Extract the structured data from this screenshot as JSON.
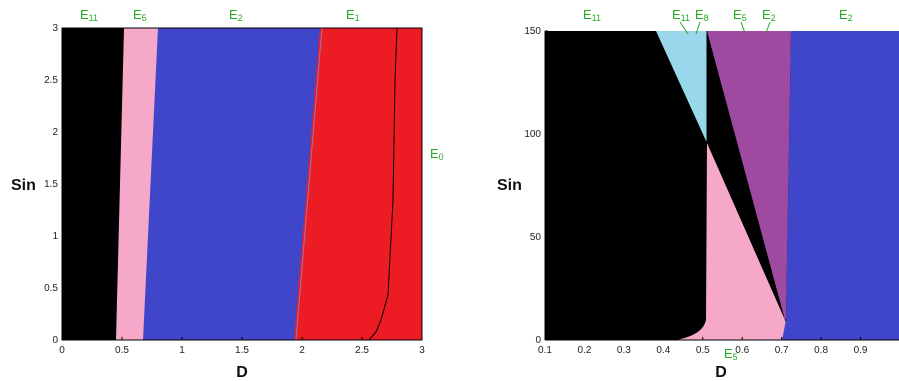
{
  "colors": {
    "black_region": "#000000",
    "pink_region": "#f6a8c8",
    "blue_region": "#3f46c9",
    "red_region": "#ed1c24",
    "cyan_region": "#98d8ea",
    "purple_region": "#9e4aa0",
    "label_green": "#22aa22"
  },
  "chart_data": [
    {
      "type": "area",
      "xlabel": "D",
      "ylabel": "Sin",
      "xlim": [
        0,
        3
      ],
      "ylim": [
        0,
        3
      ],
      "xticks": [
        "0",
        "0.5",
        "1",
        "1.5",
        "2",
        "2.5",
        "3"
      ],
      "yticks": [
        "0",
        "0.5",
        "1",
        "1.5",
        "2",
        "2.5",
        "3"
      ],
      "grid": false,
      "boundaries": [
        {
          "between": [
            "E11",
            "E5"
          ],
          "points": [
            [
              0.45,
              0
            ],
            [
              0.52,
              3
            ]
          ]
        },
        {
          "between": [
            "E5",
            "E2"
          ],
          "points": [
            [
              0.68,
              0
            ],
            [
              0.82,
              3
            ]
          ]
        },
        {
          "between": [
            "E2",
            "E1"
          ],
          "points": [
            [
              1.95,
              0
            ],
            [
              2.17,
              3
            ]
          ]
        },
        {
          "between": [
            "E1",
            "E0"
          ],
          "points": [
            [
              2.57,
              0
            ],
            [
              2.72,
              0.3
            ],
            [
              2.76,
              0.7
            ],
            [
              2.8,
              3
            ]
          ]
        }
      ],
      "regions": [
        {
          "name": "E11",
          "color": "black"
        },
        {
          "name": "E5",
          "color": "pink"
        },
        {
          "name": "E2",
          "color": "blue"
        },
        {
          "name": "E1",
          "color": "red"
        },
        {
          "name": "E0",
          "color": "red"
        }
      ],
      "region_labels": [
        {
          "name": "E11",
          "text": "E",
          "sub": "11"
        },
        {
          "name": "E5",
          "text": "E",
          "sub": "5"
        },
        {
          "name": "E2",
          "text": "E",
          "sub": "2"
        },
        {
          "name": "E1",
          "text": "E",
          "sub": "1"
        },
        {
          "name": "E0",
          "text": "E",
          "sub": "0"
        }
      ]
    },
    {
      "type": "area",
      "xlabel": "D",
      "ylabel": "Sin",
      "xlim": [
        0.1,
        1.0
      ],
      "ylim": [
        0,
        150
      ],
      "xticks": [
        "0.1",
        "0.2",
        "0.3",
        "0.4",
        "0.5",
        "0.6",
        "0.7",
        "0.8",
        "0.9"
      ],
      "yticks": [
        "0",
        "50",
        "100",
        "150"
      ],
      "grid": false,
      "boundaries": [
        {
          "between": [
            "E11",
            "E5"
          ],
          "points": [
            [
              0.44,
              0
            ],
            [
              0.5,
              8
            ],
            [
              0.505,
              95
            ]
          ]
        },
        {
          "between": [
            "E11",
            "E8"
          ],
          "points": [
            [
              0.38,
              150
            ],
            [
              0.505,
              95
            ]
          ]
        },
        {
          "between": [
            "E8",
            "E5"
          ],
          "points": [
            [
              0.505,
              95
            ],
            [
              0.505,
              150
            ]
          ]
        },
        {
          "between": [
            "E5 (upper)",
            "E5 (lower)"
          ],
          "points": [
            [
              0.505,
              95
            ],
            [
              0.71,
              8
            ]
          ]
        },
        {
          "between": [
            "E5",
            "E2"
          ],
          "points": [
            [
              0.715,
              0
            ],
            [
              0.72,
              150
            ]
          ]
        }
      ],
      "regions": [
        {
          "name": "E11",
          "color": "black"
        },
        {
          "name": "E8",
          "color": "cyan"
        },
        {
          "name": "E5 (upper)",
          "color": "purple"
        },
        {
          "name": "E5 (lower)",
          "color": "pink"
        },
        {
          "name": "E2",
          "color": "blue"
        }
      ],
      "region_labels": [
        {
          "name": "E11",
          "text": "E",
          "sub": "11"
        },
        {
          "name": "E11 (arrow)",
          "text": "E",
          "sub": "11"
        },
        {
          "name": "E8",
          "text": "E",
          "sub": "8"
        },
        {
          "name": "E5",
          "text": "E",
          "sub": "5"
        },
        {
          "name": "E2 (middle)",
          "text": "E",
          "sub": "2"
        },
        {
          "name": "E2 (right)",
          "text": "E",
          "sub": "2"
        },
        {
          "name": "E5 (bottom)",
          "text": "E",
          "sub": "5"
        }
      ]
    }
  ]
}
